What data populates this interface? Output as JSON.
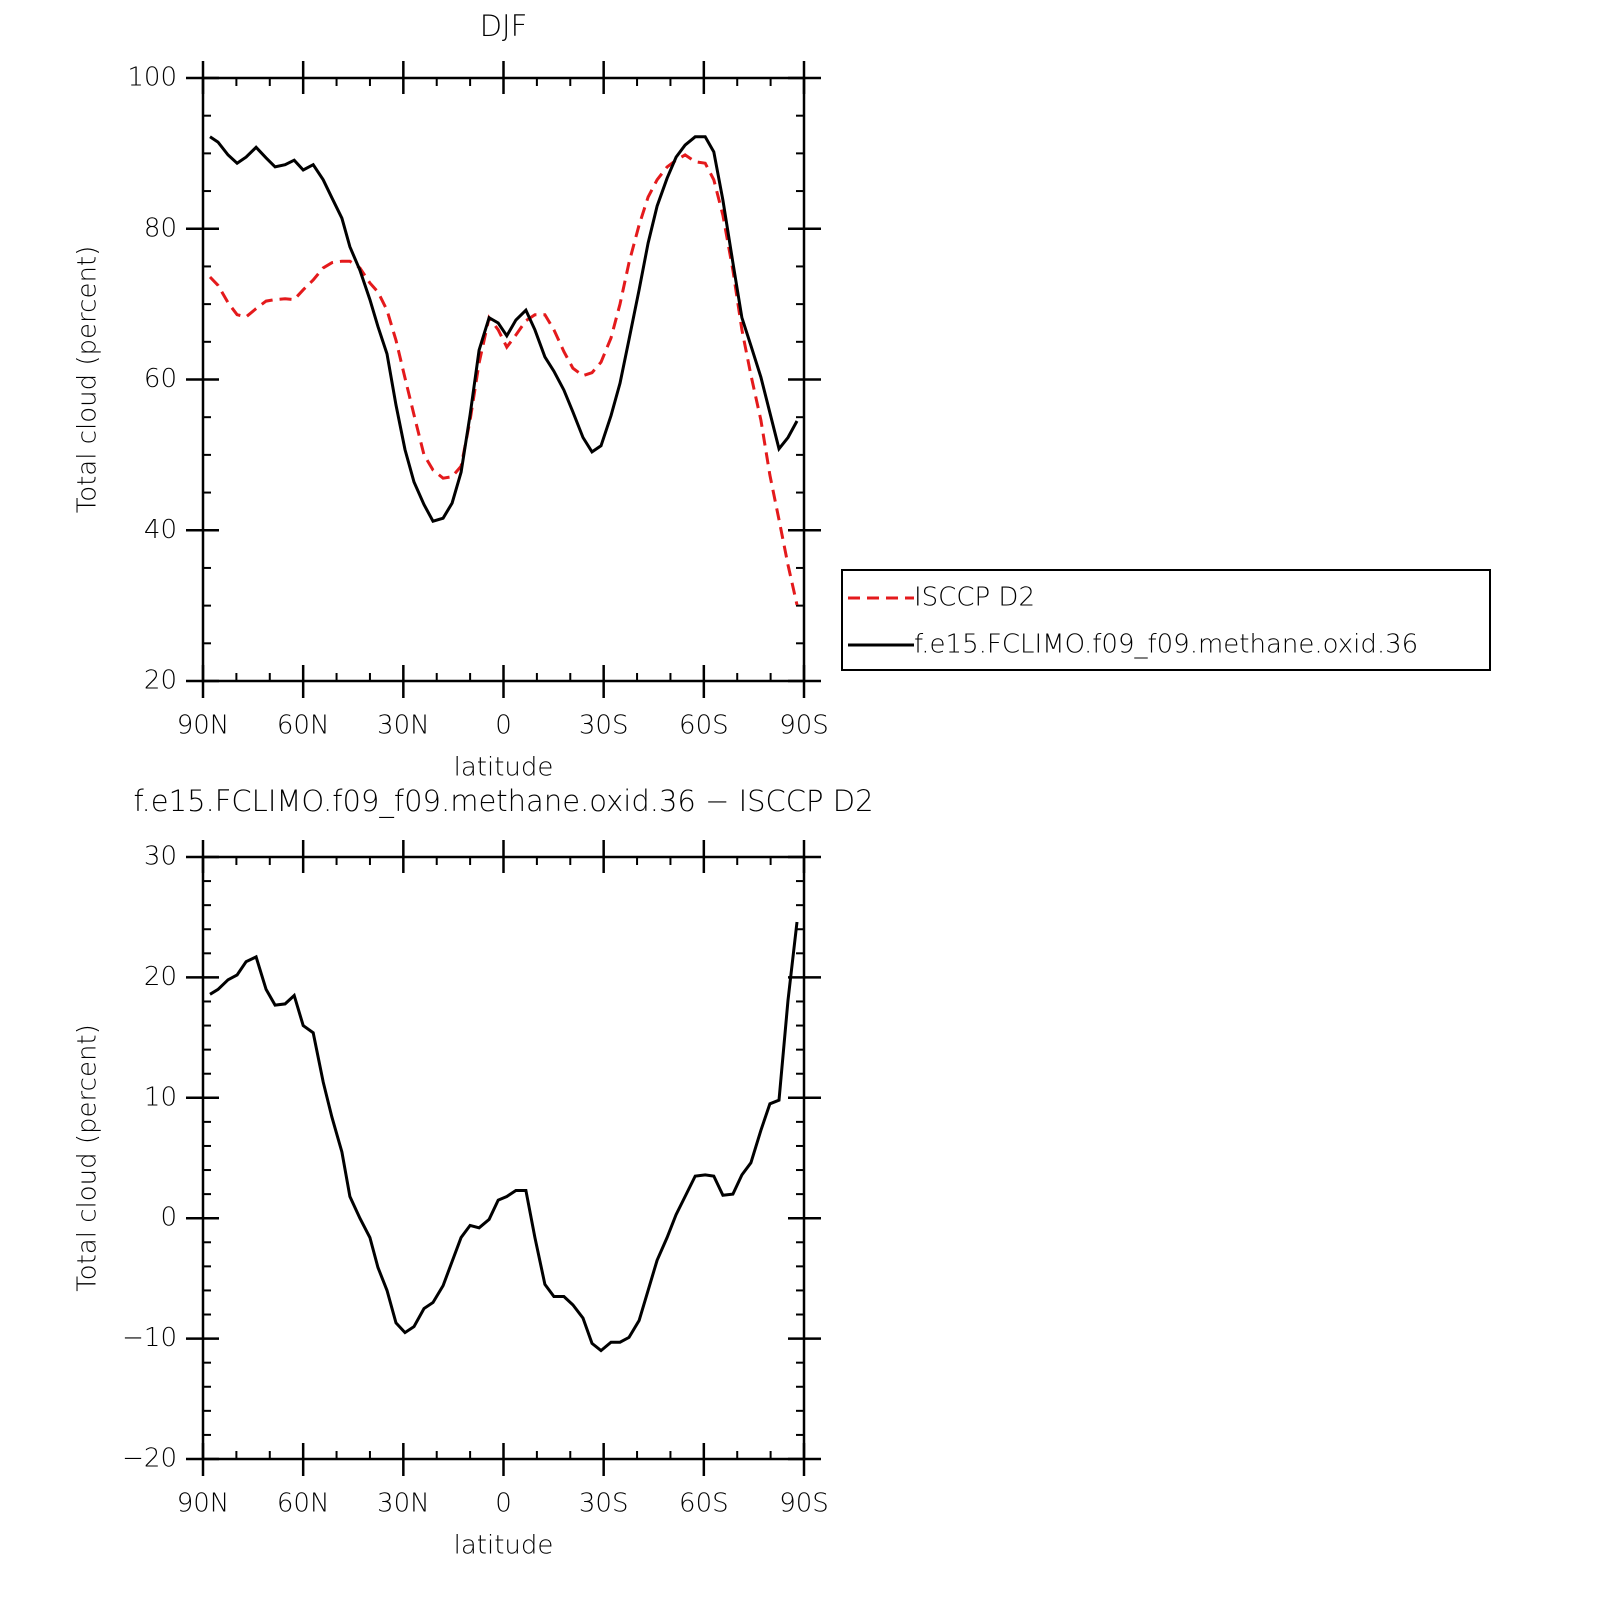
{
  "chart_data": [
    {
      "type": "line",
      "title": "DJF",
      "xlabel": "latitude",
      "ylabel": "Total cloud (percent)",
      "x": [
        87.9,
        85.5,
        82.5,
        79.8,
        77.1,
        74.1,
        71.1,
        68.4,
        65.4,
        62.7,
        60.0,
        57.0,
        54.0,
        51.4,
        48.4,
        46.0,
        43.0,
        40.0,
        37.6,
        34.9,
        32.2,
        29.5,
        26.8,
        23.8,
        21.1,
        18.1,
        15.4,
        12.7,
        10.0,
        7.3,
        4.3,
        1.6,
        -1.0,
        -3.7,
        -6.7,
        -9.4,
        -12.4,
        -15.1,
        -18.1,
        -20.8,
        -23.8,
        -26.5,
        -29.2,
        -32.2,
        -34.9,
        -37.6,
        -40.6,
        -43.3,
        -46.0,
        -49.0,
        -51.7,
        -54.4,
        -57.4,
        -60.4,
        -63.0,
        -65.7,
        -68.7,
        -71.4,
        -74.1,
        -77.1,
        -79.8,
        -82.5,
        -85.2,
        -87.9
      ],
      "series": [
        {
          "name": "ISCCP D2",
          "color": "#e41a1c",
          "dash": true,
          "values": [
            73.6,
            72.5,
            70.2,
            68.6,
            68.3,
            69.4,
            70.4,
            70.6,
            70.7,
            70.6,
            71.9,
            73.2,
            74.8,
            75.5,
            75.7,
            75.7,
            74.8,
            72.8,
            71.6,
            69.2,
            65.2,
            60.2,
            55.3,
            50.0,
            48.0,
            46.9,
            47.1,
            48.5,
            54.6,
            62.2,
            68.2,
            66.6,
            64.3,
            65.9,
            67.8,
            68.6,
            68.6,
            66.6,
            63.7,
            61.5,
            60.5,
            60.9,
            62.3,
            65.5,
            70.0,
            75.5,
            80.5,
            84.2,
            86.5,
            88.2,
            89.1,
            89.8,
            88.9,
            88.7,
            86.5,
            81.8,
            74.5,
            66.6,
            60.6,
            54.6,
            47.3,
            41.4,
            35.4,
            30.1
          ]
        },
        {
          "name": "f.e15.FCLIMO.f09_f09.methane.oxid.36",
          "color": "#000000",
          "dash": false,
          "values": [
            92.2,
            91.5,
            89.8,
            88.7,
            89.5,
            90.8,
            89.4,
            88.2,
            88.5,
            89.1,
            87.8,
            88.5,
            86.5,
            84.1,
            81.4,
            77.6,
            74.5,
            70.6,
            67.0,
            63.4,
            56.6,
            50.7,
            46.4,
            43.4,
            41.2,
            41.6,
            43.6,
            47.7,
            55.3,
            63.9,
            68.2,
            67.5,
            65.8,
            67.9,
            69.2,
            66.6,
            63.0,
            61.1,
            58.6,
            55.7,
            52.3,
            50.4,
            51.2,
            55.2,
            59.5,
            65.3,
            71.9,
            78.1,
            83.0,
            86.7,
            89.5,
            91.1,
            92.2,
            92.2,
            90.2,
            83.8,
            75.5,
            68.2,
            64.5,
            60.3,
            55.6,
            50.8,
            52.3,
            54.5
          ]
        }
      ],
      "xlim": [
        90,
        -90
      ],
      "xticks": [
        {
          "value": 90,
          "label": "90N"
        },
        {
          "value": 60,
          "label": "60N"
        },
        {
          "value": 30,
          "label": "30N"
        },
        0,
        {
          "value": -30,
          "label": "30S"
        },
        {
          "value": -60,
          "label": "60S"
        },
        {
          "value": -90,
          "label": "90S"
        }
      ],
      "xminorticks": [
        80,
        70,
        50,
        40,
        20,
        10,
        -10,
        -20,
        -40,
        -50,
        -70,
        -80
      ],
      "ylim": [
        20,
        100
      ],
      "yticks": [
        20,
        40,
        60,
        80,
        100
      ],
      "yminorticks": [
        25,
        30,
        35,
        45,
        50,
        55,
        65,
        70,
        75,
        85,
        90,
        95
      ],
      "legend": "right"
    },
    {
      "type": "line",
      "title": "f.e15.FCLIMO.f09_f09.methane.oxid.36 − ISCCP D2",
      "xlabel": "latitude",
      "ylabel": "Total cloud (percent)",
      "x": [
        87.9,
        85.5,
        82.5,
        79.8,
        77.1,
        74.1,
        71.1,
        68.4,
        65.4,
        62.7,
        60.0,
        57.0,
        54.0,
        51.4,
        48.4,
        46.0,
        43.0,
        40.0,
        37.6,
        34.9,
        32.2,
        29.5,
        26.8,
        23.8,
        21.1,
        18.1,
        15.4,
        12.7,
        10.0,
        7.3,
        4.3,
        1.6,
        -1.0,
        -3.7,
        -6.7,
        -9.4,
        -12.4,
        -15.1,
        -18.1,
        -20.8,
        -23.8,
        -26.5,
        -29.2,
        -32.2,
        -34.9,
        -37.6,
        -40.6,
        -43.3,
        -46.0,
        -49.0,
        -51.7,
        -54.4,
        -57.4,
        -60.4,
        -63.0,
        -65.7,
        -68.7,
        -71.4,
        -74.1,
        -77.1,
        -79.8,
        -82.5,
        -85.2,
        -87.9
      ],
      "series": [
        {
          "color": "#000000",
          "dash": false,
          "values": [
            18.6,
            19.0,
            19.8,
            20.2,
            21.3,
            21.7,
            19.0,
            17.7,
            17.8,
            18.5,
            16.0,
            15.4,
            11.3,
            8.4,
            5.5,
            1.8,
            0.0,
            -1.6,
            -4.1,
            -6.0,
            -8.7,
            -9.5,
            -9.0,
            -7.5,
            -7.0,
            -5.6,
            -3.6,
            -1.6,
            -0.6,
            -0.8,
            -0.1,
            1.5,
            1.8,
            2.3,
            2.3,
            -1.6,
            -5.5,
            -6.5,
            -6.5,
            -7.2,
            -8.3,
            -10.4,
            -11.0,
            -10.3,
            -10.3,
            -9.9,
            -8.5,
            -6.0,
            -3.5,
            -1.6,
            0.3,
            1.8,
            3.5,
            3.6,
            3.5,
            1.9,
            2.0,
            3.6,
            4.6,
            7.3,
            9.5,
            9.8,
            18.1,
            24.6
          ]
        }
      ],
      "xlim": [
        90,
        -90
      ],
      "xticks": [
        {
          "value": 90,
          "label": "90N"
        },
        {
          "value": 60,
          "label": "60N"
        },
        {
          "value": 30,
          "label": "30N"
        },
        0,
        {
          "value": -30,
          "label": "30S"
        },
        {
          "value": -60,
          "label": "60S"
        },
        {
          "value": -90,
          "label": "90S"
        }
      ],
      "xminorticks": [
        80,
        70,
        50,
        40,
        20,
        10,
        -10,
        -20,
        -40,
        -50,
        -70,
        -80
      ],
      "ylim": [
        -20,
        30
      ],
      "yticks": [
        {
          "value": -20,
          "label": "−20"
        },
        {
          "value": -10,
          "label": "−10"
        },
        0,
        10,
        20,
        30
      ],
      "yminorticks": [
        -18,
        -16,
        -14,
        -12,
        -8,
        -6,
        -4,
        -2,
        2,
        4,
        6,
        8,
        12,
        14,
        16,
        18,
        22,
        24,
        26,
        28
      ]
    }
  ]
}
